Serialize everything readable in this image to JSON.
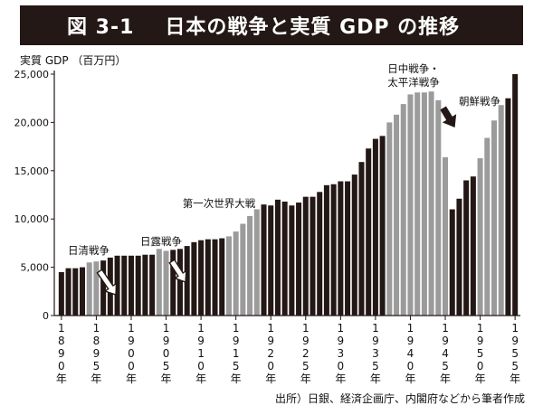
{
  "header": {
    "figure_number": "図 3-1",
    "title": "日本の戦争と実質 GDP の推移"
  },
  "unit_label": "実質 GDP （百万円）",
  "source": "出所）日銀、経済企画庁、内閣府などから筆者作成",
  "colors": {
    "title_bg": "#231815",
    "peace_bar": "#231815",
    "war_bar": "#9b9b9b",
    "axis": "#231815"
  },
  "chart_data": {
    "type": "bar",
    "title": "日本の戦争と実質 GDP の推移",
    "ylabel": "実質 GDP （百万円）",
    "xlabel": "",
    "ylim": [
      0,
      25000
    ],
    "yticks": [
      0,
      5000,
      10000,
      15000,
      20000,
      25000
    ],
    "ytick_labels": [
      "0",
      "5,000",
      "10,000",
      "15,000",
      "20,000",
      "25,000"
    ],
    "xtick_years": [
      1890,
      1895,
      1900,
      1905,
      1910,
      1915,
      1920,
      1925,
      1930,
      1935,
      1940,
      1945,
      1950,
      1955
    ],
    "xtick_labels": [
      "1890年",
      "1895年",
      "1900年",
      "1905年",
      "1910年",
      "1915年",
      "1920年",
      "1925年",
      "1930年",
      "1935年",
      "1940年",
      "1945年",
      "1950年",
      "1955年"
    ],
    "grid": false,
    "years": [
      1890,
      1891,
      1892,
      1893,
      1894,
      1895,
      1896,
      1897,
      1898,
      1899,
      1900,
      1901,
      1902,
      1903,
      1904,
      1905,
      1906,
      1907,
      1908,
      1909,
      1910,
      1911,
      1912,
      1913,
      1914,
      1915,
      1916,
      1917,
      1918,
      1919,
      1920,
      1921,
      1922,
      1923,
      1924,
      1925,
      1926,
      1927,
      1928,
      1929,
      1930,
      1931,
      1932,
      1933,
      1934,
      1935,
      1936,
      1937,
      1938,
      1939,
      1940,
      1941,
      1942,
      1943,
      1944,
      1945,
      1946,
      1947,
      1948,
      1949,
      1950,
      1951,
      1952,
      1953,
      1954,
      1955
    ],
    "values": [
      4500,
      4900,
      4900,
      5000,
      5500,
      5600,
      5700,
      6000,
      6200,
      6200,
      6200,
      6200,
      6300,
      6300,
      6900,
      6700,
      6800,
      6900,
      7200,
      7600,
      7800,
      7900,
      7900,
      8000,
      8200,
      8700,
      9500,
      10300,
      11000,
      11500,
      11400,
      12000,
      11800,
      11400,
      11700,
      12300,
      12300,
      12800,
      13500,
      13600,
      13900,
      13900,
      14600,
      15900,
      17300,
      18300,
      18600,
      20000,
      20800,
      21900,
      22900,
      23100,
      23100,
      23200,
      22300,
      16400,
      11000,
      12100,
      14000,
      14400,
      16300,
      18400,
      20200,
      21800,
      22500,
      25000
    ],
    "war_years": [
      1894,
      1895,
      1904,
      1905,
      1914,
      1915,
      1916,
      1917,
      1918,
      1937,
      1938,
      1939,
      1940,
      1941,
      1942,
      1943,
      1944,
      1945,
      1950,
      1951,
      1952,
      1953
    ],
    "annotations": [
      {
        "text": "日清戦争",
        "lines": [
          "日清戦争"
        ]
      },
      {
        "text": "日露戦争",
        "lines": [
          "日露戦争"
        ]
      },
      {
        "text": "第一次世界大戦",
        "lines": [
          "第一次世界大戦"
        ]
      },
      {
        "text": "日中戦争・太平洋戦争",
        "lines": [
          "日中戦争・",
          "太平洋戦争"
        ]
      },
      {
        "text": "朝鮮戦争",
        "lines": [
          "朝鮮戦争"
        ]
      }
    ]
  }
}
